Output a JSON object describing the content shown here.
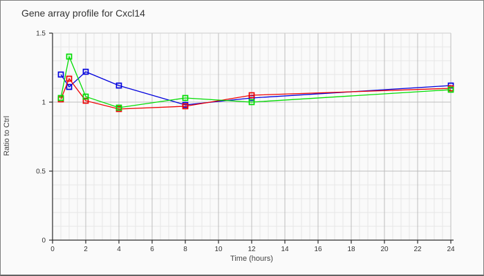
{
  "window": {
    "background": "#fafafa",
    "border_color": "#7d7d7d"
  },
  "chart_data": {
    "type": "line",
    "title": "Gene array profile for Cxcl14",
    "xlabel": "Time (hours)",
    "ylabel": "Ratio to Ctrl",
    "x": [
      0.5,
      1,
      2,
      4,
      8,
      12,
      24
    ],
    "series": [
      {
        "name": "blue-series",
        "color": "#0000dd",
        "marker": "open-square",
        "values": [
          1.2,
          1.11,
          1.22,
          1.12,
          0.98,
          1.03,
          1.12
        ]
      },
      {
        "name": "red-series",
        "color": "#ee0000",
        "marker": "open-square",
        "values": [
          1.02,
          1.17,
          1.01,
          0.95,
          0.97,
          1.05,
          1.1
        ]
      },
      {
        "name": "green-series",
        "color": "#00dd00",
        "marker": "open-square",
        "values": [
          1.03,
          1.33,
          1.04,
          0.96,
          1.03,
          1.0,
          1.09
        ]
      }
    ],
    "xlim": [
      0,
      24
    ],
    "ylim": [
      0,
      1.5
    ],
    "xticks": [
      0,
      2,
      4,
      6,
      8,
      10,
      12,
      14,
      16,
      18,
      20,
      22,
      24
    ],
    "xtick_labels": [
      "0",
      "2",
      "4",
      "6",
      "8",
      "10",
      "12",
      "14",
      "16",
      "18",
      "20",
      "22",
      "24"
    ],
    "yticks": [
      0,
      0.5,
      1,
      1.5
    ],
    "ytick_labels": [
      "0",
      "0.5",
      "1",
      "1.5"
    ],
    "minor_x_step": 0.5,
    "minor_y_step": 0.1,
    "grid": true,
    "legend": false,
    "colors": {
      "grid_minor": "#e6e6e6",
      "grid_major": "#bdbdbd",
      "grid_top": "#cccccc",
      "axis": "#2a2a2a",
      "tick_text": "#333333"
    }
  }
}
